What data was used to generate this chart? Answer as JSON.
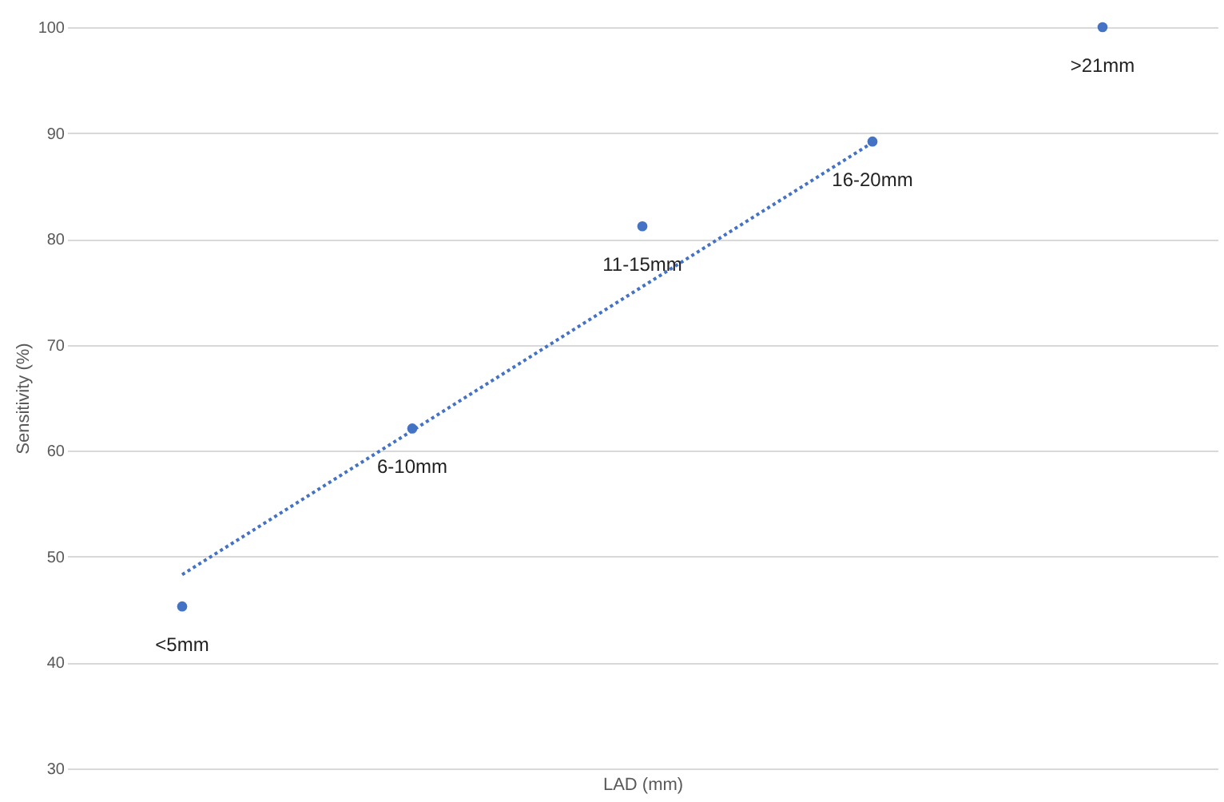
{
  "chart_data": {
    "type": "scatter",
    "xlabel": "LAD (mm)",
    "ylabel": "Sensitivity (%)",
    "categories": [
      null,
      null,
      null,
      null,
      null
    ],
    "series": [
      {
        "color": "#4472c4",
        "marker": "circle",
        "values": [
          45.3,
          62.1,
          81.2,
          89.2,
          100
        ]
      },
      {
        "type": "line",
        "color": "#4472c4",
        "line_style": "dotted",
        "marker": "none",
        "values": [
          48.3,
          61.9,
          75.5,
          89.1,
          null
        ]
      }
    ],
    "ylim": [
      30,
      100
    ],
    "yticks": [
      30,
      40,
      50,
      60,
      70,
      80,
      90,
      100
    ],
    "grid": "y",
    "tick_labels": "y",
    "annotations": [
      {
        "text": "<5mm",
        "y": 45.3
      },
      {
        "text": "6-10mm",
        "y": 62.1
      },
      {
        "text": "11-15mm",
        "y": 81.2
      },
      {
        "text": "16-20mm",
        "y": 89.2
      },
      {
        "text": ">21mm",
        "y": 100
      }
    ]
  }
}
